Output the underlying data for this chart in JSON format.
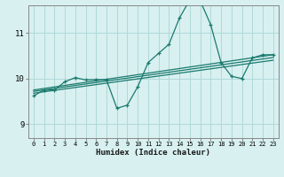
{
  "xlabel": "Humidex (Indice chaleur)",
  "bg_color": "#d8f0f0",
  "grid_color": "#b0d8d8",
  "line_color": "#1a7a6e",
  "xlim": [
    -0.5,
    23.5
  ],
  "ylim": [
    8.7,
    11.6
  ],
  "yticks": [
    9,
    10,
    11
  ],
  "xticks": [
    0,
    1,
    2,
    3,
    4,
    5,
    6,
    7,
    8,
    9,
    10,
    11,
    12,
    13,
    14,
    15,
    16,
    17,
    18,
    19,
    20,
    21,
    22,
    23
  ],
  "series": [
    {
      "x": [
        0,
        1,
        2,
        3,
        4,
        5,
        6,
        7,
        8,
        9,
        10,
        11,
        12,
        13,
        14,
        15,
        16,
        17,
        18,
        19,
        20,
        21,
        22,
        23
      ],
      "y": [
        9.62,
        9.75,
        9.75,
        9.93,
        10.02,
        9.97,
        9.98,
        9.97,
        9.35,
        9.42,
        9.82,
        10.35,
        10.55,
        10.75,
        11.32,
        11.72,
        11.7,
        11.18,
        10.35,
        10.05,
        10.0,
        10.45,
        10.52,
        10.52
      ],
      "marker": true,
      "lw": 0.9
    },
    {
      "x": [
        0,
        23
      ],
      "y": [
        9.75,
        10.52
      ],
      "marker": false,
      "lw": 0.9
    },
    {
      "x": [
        0,
        23
      ],
      "y": [
        9.72,
        10.46
      ],
      "marker": false,
      "lw": 0.9
    },
    {
      "x": [
        0,
        23
      ],
      "y": [
        9.68,
        10.4
      ],
      "marker": false,
      "lw": 0.9
    }
  ]
}
